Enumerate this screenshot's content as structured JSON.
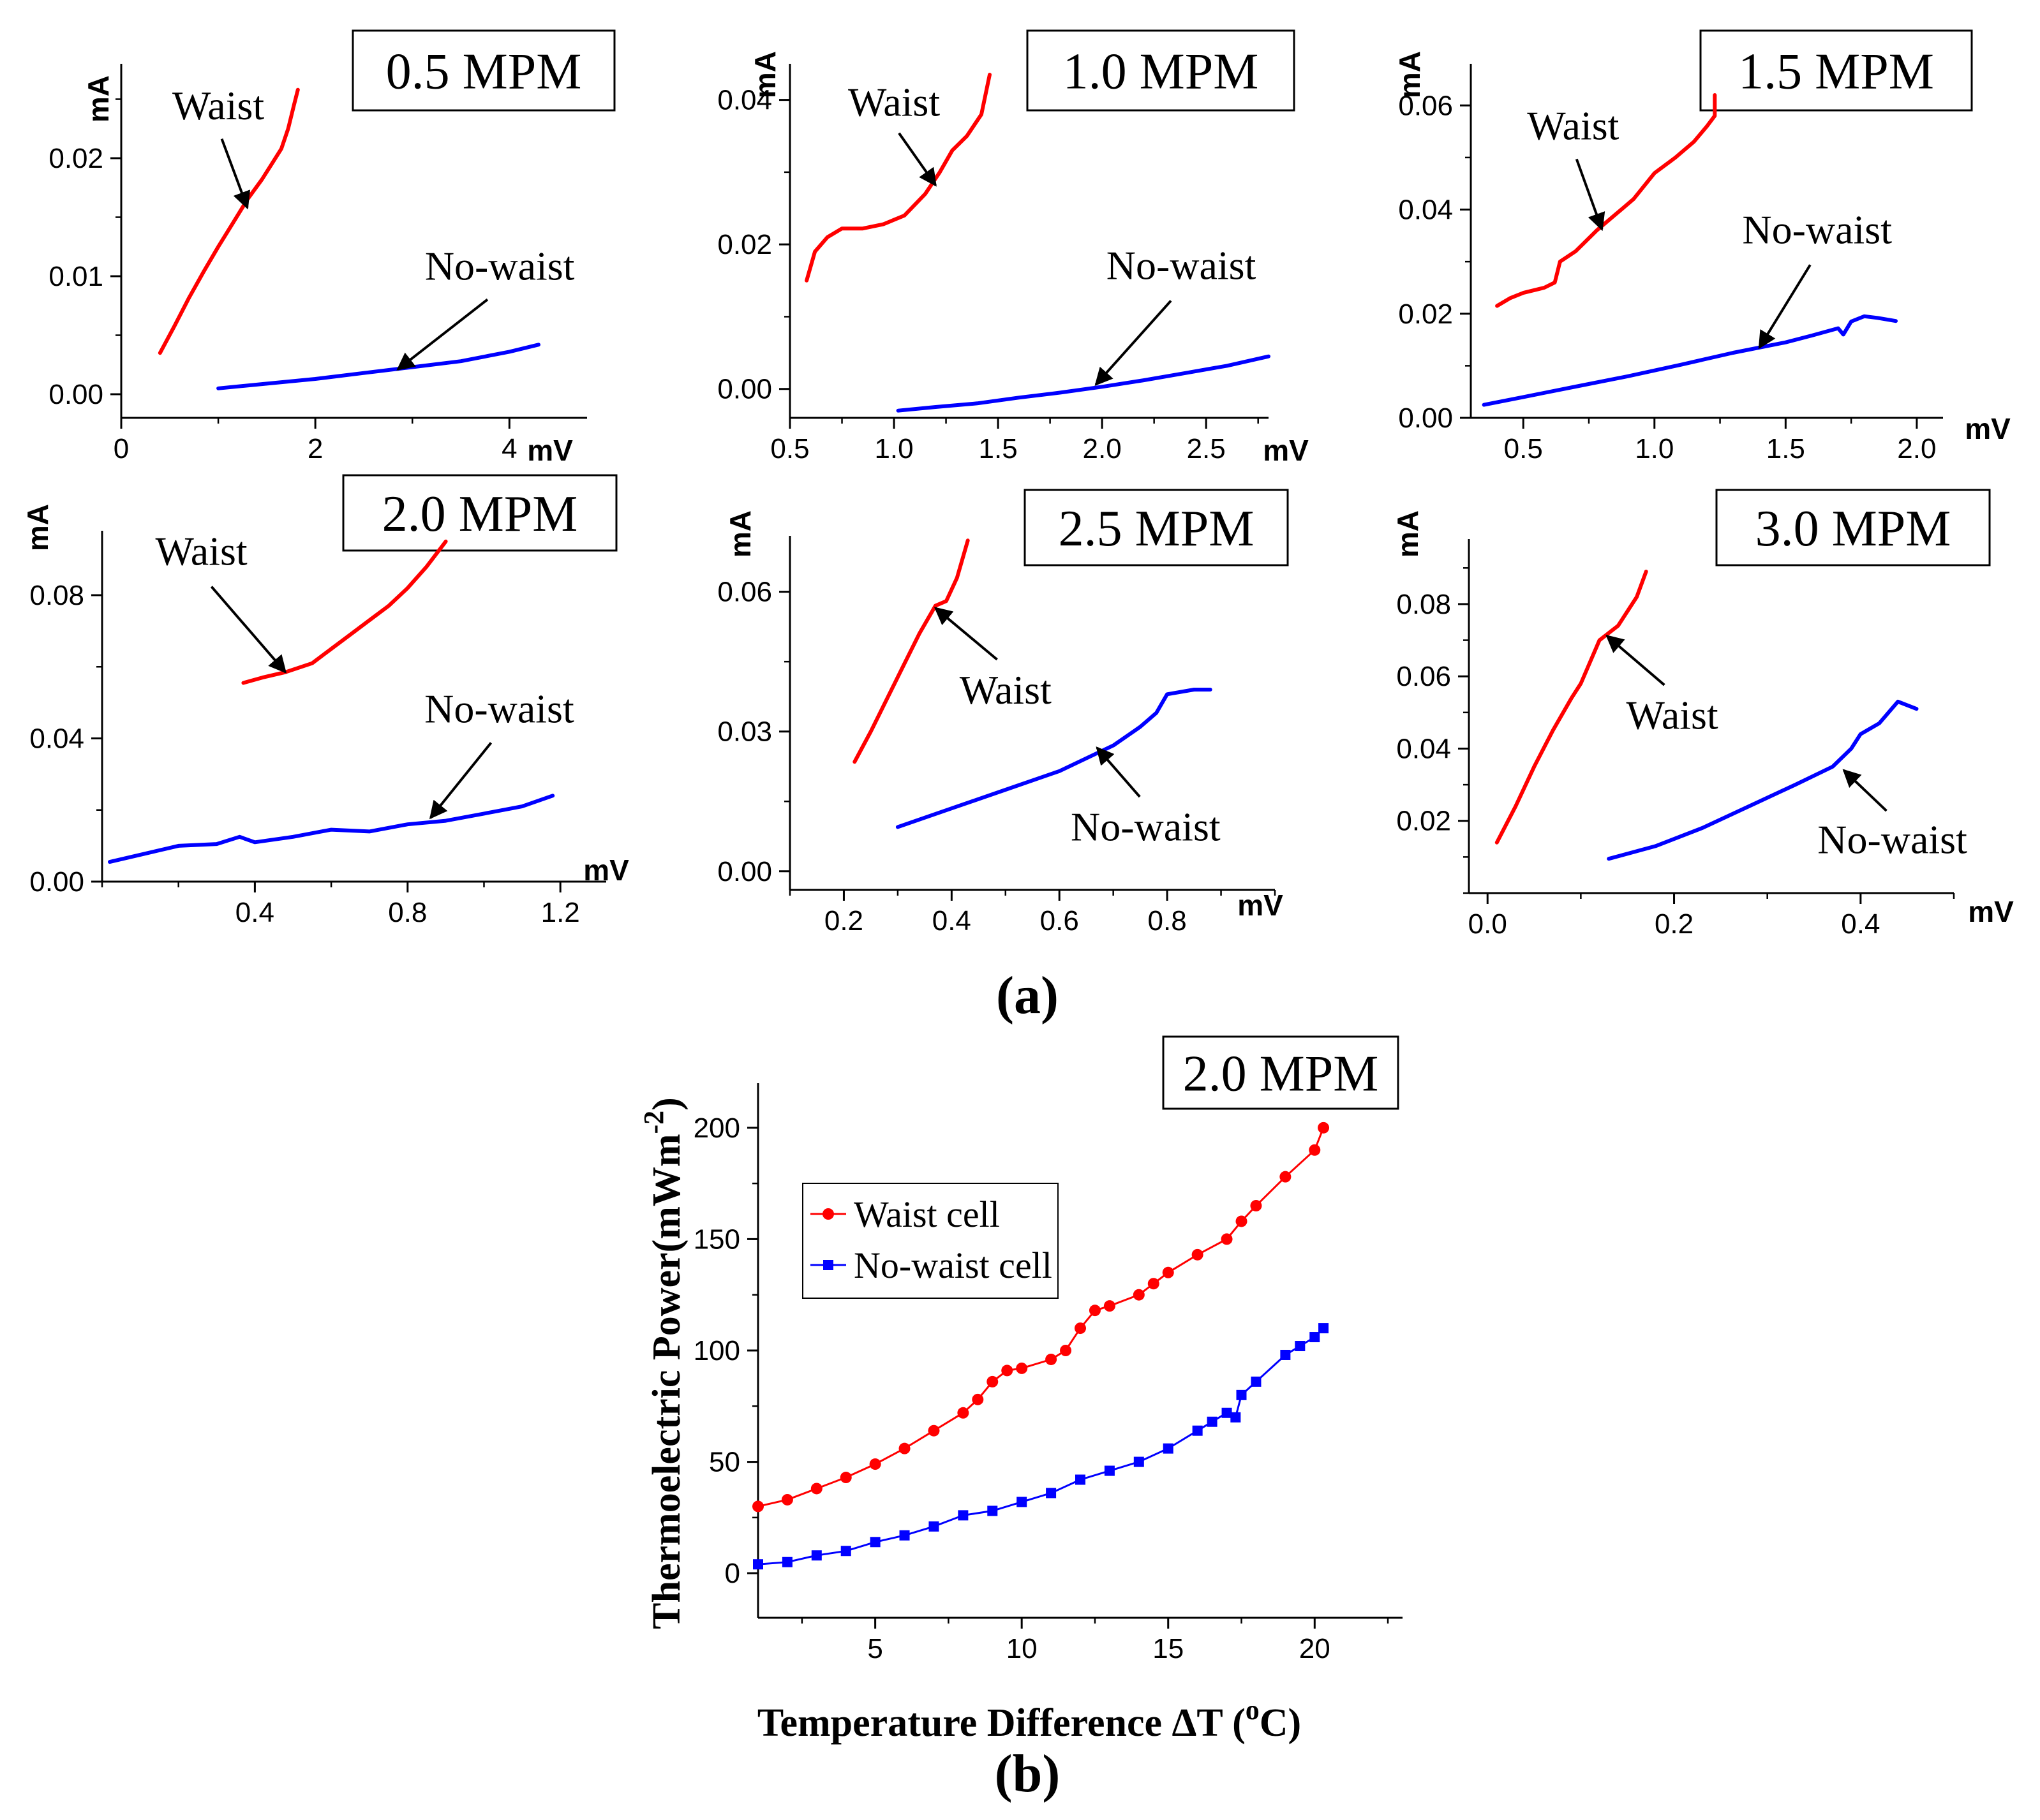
{
  "figure": {
    "panel_a_label": "(a)",
    "panel_b_label": "(b)"
  },
  "chart_data": [
    {
      "type": "line",
      "title": "0.5 MPM",
      "xlabel": "mV",
      "ylabel": "mA",
      "xlim": [
        0,
        4.8
      ],
      "ylim": [
        -0.002,
        0.028
      ],
      "xticks": [
        0,
        2,
        4
      ],
      "yticks": [
        0.0,
        0.01,
        0.02
      ],
      "xtick_labels": [
        "0",
        "2",
        "4"
      ],
      "ytick_labels": [
        "0.00",
        "0.01",
        "0.02"
      ],
      "series": [
        {
          "name": "Waist",
          "color": "#ff0000",
          "x": [
            0.4,
            0.55,
            0.7,
            0.85,
            1.0,
            1.15,
            1.3,
            1.45,
            1.55,
            1.65,
            1.72,
            1.78,
            1.82
          ],
          "y": [
            0.0035,
            0.0058,
            0.0082,
            0.0104,
            0.0125,
            0.0145,
            0.0165,
            0.0182,
            0.0195,
            0.0208,
            0.0225,
            0.0245,
            0.0258
          ]
        },
        {
          "name": "No-waist",
          "color": "#0000ff",
          "x": [
            1.0,
            1.5,
            2.0,
            2.5,
            3.0,
            3.5,
            4.0,
            4.3
          ],
          "y": [
            0.0005,
            0.0009,
            0.0013,
            0.0018,
            0.0023,
            0.0028,
            0.0036,
            0.0042
          ]
        }
      ],
      "annotations": [
        {
          "text": "Waist",
          "x": 1.0,
          "y": 0.0233,
          "target_x": 1.3,
          "target_y": 0.0158,
          "side": "above"
        },
        {
          "text": "No-waist",
          "x": 3.9,
          "y": 0.0097,
          "target_x": 2.85,
          "target_y": 0.0021,
          "side": "above"
        }
      ]
    },
    {
      "type": "line",
      "title": "1.0 MPM",
      "xlabel": "mV",
      "ylabel": "mA",
      "xlim": [
        0.5,
        2.8
      ],
      "ylim": [
        -0.004,
        0.045
      ],
      "xticks": [
        0.5,
        1.0,
        1.5,
        2.0,
        2.5
      ],
      "yticks": [
        0.0,
        0.02,
        0.04
      ],
      "xtick_labels": [
        "0.5",
        "1.0",
        "1.5",
        "2.0",
        "2.5"
      ],
      "ytick_labels": [
        "0.00",
        "0.02",
        "0.04"
      ],
      "series": [
        {
          "name": "Waist",
          "color": "#ff0000",
          "x": [
            0.58,
            0.62,
            0.68,
            0.75,
            0.85,
            0.95,
            1.05,
            1.15,
            1.22,
            1.28,
            1.35,
            1.42,
            1.46
          ],
          "y": [
            0.015,
            0.019,
            0.021,
            0.0222,
            0.0222,
            0.0228,
            0.024,
            0.027,
            0.03,
            0.033,
            0.035,
            0.038,
            0.0435
          ]
        },
        {
          "name": "No-waist",
          "color": "#0000ff",
          "x": [
            1.02,
            1.2,
            1.4,
            1.6,
            1.8,
            2.0,
            2.2,
            2.4,
            2.6,
            2.8
          ],
          "y": [
            -0.003,
            -0.0025,
            -0.002,
            -0.0012,
            -0.0005,
            0.0003,
            0.0012,
            0.0022,
            0.0032,
            0.0045
          ]
        }
      ],
      "annotations": [
        {
          "text": "Waist",
          "x": 1.0,
          "y": 0.0378,
          "target_x": 1.2,
          "target_y": 0.0282,
          "side": "above"
        },
        {
          "text": "No-waist",
          "x": 2.38,
          "y": 0.0152,
          "target_x": 1.97,
          "target_y": 0.0006,
          "side": "above"
        }
      ]
    },
    {
      "type": "line",
      "title": "1.5 MPM",
      "xlabel": "mV",
      "ylabel": "mA",
      "xlim": [
        0.3,
        2.1
      ],
      "ylim": [
        0.0,
        0.068
      ],
      "xticks": [
        0.5,
        1.0,
        1.5,
        2.0
      ],
      "yticks": [
        0.0,
        0.02,
        0.04,
        0.06
      ],
      "xtick_labels": [
        "0.5",
        "1.0",
        "1.5",
        "2.0"
      ],
      "ytick_labels": [
        "0.00",
        "0.02",
        "0.04",
        "0.06"
      ],
      "series": [
        {
          "name": "Waist",
          "color": "#ff0000",
          "x": [
            0.4,
            0.45,
            0.5,
            0.58,
            0.62,
            0.64,
            0.7,
            0.78,
            0.85,
            0.92,
            1.0,
            1.08,
            1.15,
            1.2,
            1.23,
            1.23
          ],
          "y": [
            0.0215,
            0.023,
            0.024,
            0.025,
            0.026,
            0.03,
            0.032,
            0.036,
            0.039,
            0.042,
            0.047,
            0.05,
            0.053,
            0.056,
            0.058,
            0.062
          ]
        },
        {
          "name": "No-waist",
          "color": "#0000ff",
          "x": [
            0.35,
            0.5,
            0.7,
            0.9,
            1.1,
            1.3,
            1.5,
            1.6,
            1.7,
            1.72,
            1.75,
            1.8,
            1.85,
            1.92
          ],
          "y": [
            0.0025,
            0.004,
            0.006,
            0.008,
            0.0102,
            0.0125,
            0.0145,
            0.0158,
            0.0172,
            0.016,
            0.0185,
            0.0195,
            0.0192,
            0.0186
          ]
        }
      ],
      "annotations": [
        {
          "text": "Waist",
          "x": 0.69,
          "y": 0.0535,
          "target_x": 0.8,
          "target_y": 0.0362,
          "side": "above"
        },
        {
          "text": "No-waist",
          "x": 1.62,
          "y": 0.0335,
          "target_x": 1.4,
          "target_y": 0.0135,
          "side": "above"
        }
      ]
    },
    {
      "type": "line",
      "title": "2.0 MPM",
      "xlabel": "mV",
      "ylabel": "mA",
      "xlim": [
        0.0,
        1.32
      ],
      "ylim": [
        0.0,
        0.098
      ],
      "xticks": [
        0.4,
        0.8,
        1.2
      ],
      "yticks": [
        0.0,
        0.04,
        0.08
      ],
      "xtick_labels": [
        "0.4",
        "0.8",
        "1.2"
      ],
      "ytick_labels": [
        "0.00",
        "0.04",
        "0.08"
      ],
      "series": [
        {
          "name": "Waist",
          "color": "#ff0000",
          "x": [
            0.37,
            0.42,
            0.48,
            0.55,
            0.6,
            0.65,
            0.7,
            0.75,
            0.8,
            0.85,
            0.9
          ],
          "y": [
            0.0555,
            0.057,
            0.0585,
            0.061,
            0.065,
            0.069,
            0.073,
            0.077,
            0.082,
            0.088,
            0.095
          ]
        },
        {
          "name": "No-waist",
          "color": "#0000ff",
          "x": [
            0.02,
            0.1,
            0.2,
            0.3,
            0.36,
            0.4,
            0.5,
            0.6,
            0.7,
            0.8,
            0.9,
            1.0,
            1.1,
            1.18
          ],
          "y": [
            0.0055,
            0.0075,
            0.01,
            0.0105,
            0.0125,
            0.011,
            0.0125,
            0.0145,
            0.014,
            0.016,
            0.017,
            0.019,
            0.021,
            0.024
          ]
        }
      ],
      "annotations": [
        {
          "text": "Waist",
          "x": 0.26,
          "y": 0.0885,
          "target_x": 0.48,
          "target_y": 0.0585,
          "side": "above"
        },
        {
          "text": "No-waist",
          "x": 1.04,
          "y": 0.0445,
          "target_x": 0.86,
          "target_y": 0.0178,
          "side": "above"
        }
      ]
    },
    {
      "type": "line",
      "title": "2.5 MPM",
      "xlabel": "mV",
      "ylabel": "mA",
      "xlim": [
        0.1,
        1.0
      ],
      "ylim": [
        -0.004,
        0.072
      ],
      "xticks": [
        0.2,
        0.4,
        0.6,
        0.8
      ],
      "yticks": [
        0.0,
        0.03,
        0.06
      ],
      "xtick_labels": [
        "0.2",
        "0.4",
        "0.6",
        "0.8"
      ],
      "ytick_labels": [
        "0.00",
        "0.03",
        "0.06"
      ],
      "series": [
        {
          "name": "Waist",
          "color": "#ff0000",
          "x": [
            0.22,
            0.25,
            0.28,
            0.31,
            0.34,
            0.37,
            0.39,
            0.41,
            0.43
          ],
          "y": [
            0.0235,
            0.03,
            0.037,
            0.044,
            0.051,
            0.057,
            0.058,
            0.063,
            0.071
          ]
        },
        {
          "name": "No-waist",
          "color": "#0000ff",
          "x": [
            0.3,
            0.4,
            0.5,
            0.6,
            0.7,
            0.75,
            0.78,
            0.8,
            0.85,
            0.88
          ],
          "y": [
            0.0095,
            0.0135,
            0.0175,
            0.0215,
            0.027,
            0.031,
            0.034,
            0.038,
            0.039,
            0.039
          ]
        }
      ],
      "annotations": [
        {
          "text": "Waist",
          "x": 0.5,
          "y": 0.036,
          "target_x": 0.37,
          "target_y": 0.0565,
          "side": "below"
        },
        {
          "text": "No-waist",
          "x": 0.76,
          "y": 0.0066,
          "target_x": 0.67,
          "target_y": 0.0265,
          "side": "below"
        }
      ]
    },
    {
      "type": "line",
      "title": "3.0 MPM",
      "xlabel": "mV",
      "ylabel": "mA",
      "xlim": [
        -0.02,
        0.5
      ],
      "ylim": [
        0.0,
        0.098
      ],
      "xticks": [
        0.0,
        0.2,
        0.4
      ],
      "yticks": [
        0.02,
        0.04,
        0.06,
        0.08
      ],
      "xtick_labels": [
        "0.0",
        "0.2",
        "0.4"
      ],
      "ytick_labels": [
        "0.02",
        "0.04",
        "0.06",
        "0.08"
      ],
      "series": [
        {
          "name": "Waist",
          "color": "#ff0000",
          "x": [
            0.01,
            0.03,
            0.05,
            0.07,
            0.09,
            0.1,
            0.12,
            0.14,
            0.16,
            0.17
          ],
          "y": [
            0.014,
            0.024,
            0.035,
            0.045,
            0.054,
            0.058,
            0.07,
            0.074,
            0.082,
            0.089
          ]
        },
        {
          "name": "No-waist",
          "color": "#0000ff",
          "x": [
            0.13,
            0.18,
            0.23,
            0.28,
            0.33,
            0.37,
            0.39,
            0.4,
            0.42,
            0.44,
            0.46
          ],
          "y": [
            0.0095,
            0.013,
            0.018,
            0.024,
            0.03,
            0.035,
            0.04,
            0.044,
            0.047,
            0.053,
            0.051
          ]
        }
      ],
      "annotations": [
        {
          "text": "Waist",
          "x": 0.198,
          "y": 0.0455,
          "target_x": 0.128,
          "target_y": 0.0712,
          "side": "below"
        },
        {
          "text": "No-waist",
          "x": 0.434,
          "y": 0.011,
          "target_x": 0.382,
          "target_y": 0.034,
          "side": "below"
        }
      ]
    },
    {
      "type": "scatter",
      "title": "2.0 MPM",
      "xlabel": "Temperature Difference ΔT (",
      "xlabel_sup": "o",
      "xlabel_tail": "C)",
      "ylabel": "Thermoelectric Power(mWm",
      "ylabel_sup": "-2",
      "ylabel_tail": ")",
      "xlim": [
        1.0,
        23.0
      ],
      "ylim": [
        -20,
        220
      ],
      "xticks": [
        5,
        10,
        15,
        20
      ],
      "yticks": [
        0,
        50,
        100,
        150,
        200
      ],
      "xtick_labels": [
        "5",
        "10",
        "15",
        "20"
      ],
      "ytick_labels": [
        "0",
        "50",
        "100",
        "150",
        "200"
      ],
      "legend": {
        "position": "top-left",
        "entries": [
          "Waist cell",
          "No-waist cell"
        ]
      },
      "series": [
        {
          "name": "Waist cell",
          "color": "#ff0000",
          "marker": "circle",
          "x": [
            1.0,
            2.0,
            3.0,
            4.0,
            5.0,
            6.0,
            7.0,
            8.0,
            8.5,
            9.0,
            9.5,
            10.0,
            11.0,
            11.5,
            12.0,
            12.5,
            13.0,
            14.0,
            14.5,
            15.0,
            16.0,
            17.0,
            17.5,
            18.0,
            19.0,
            20.0,
            20.3
          ],
          "y": [
            30,
            33,
            38,
            43,
            49,
            56,
            64,
            72,
            78,
            86,
            91,
            92,
            96,
            100,
            110,
            118,
            120,
            125,
            130,
            135,
            143,
            150,
            158,
            165,
            178,
            190,
            200
          ]
        },
        {
          "name": "No-waist cell",
          "color": "#0000ff",
          "marker": "square",
          "x": [
            1.0,
            2.0,
            3.0,
            4.0,
            5.0,
            6.0,
            7.0,
            8.0,
            9.0,
            10.0,
            11.0,
            12.0,
            13.0,
            14.0,
            15.0,
            16.0,
            16.5,
            17.0,
            17.3,
            17.5,
            18.0,
            19.0,
            19.5,
            20.0,
            20.3
          ],
          "y": [
            4,
            5,
            8,
            10,
            14,
            17,
            21,
            26,
            28,
            32,
            36,
            42,
            46,
            50,
            56,
            64,
            68,
            72,
            70,
            80,
            86,
            98,
            102,
            106,
            110
          ]
        }
      ]
    }
  ]
}
